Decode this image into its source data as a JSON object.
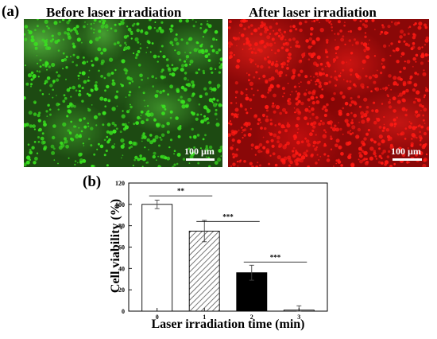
{
  "figure": {
    "panel_a_label": "(a)",
    "panel_b_label": "(b)"
  },
  "micrographs": [
    {
      "title": "Before laser irradiation",
      "scale_label": "100 µm",
      "color": "#39e21f"
    },
    {
      "title": "After laser irradiation",
      "scale_label": "100 µm",
      "color": "#ff1a14"
    }
  ],
  "chart_data": {
    "type": "bar",
    "categories": [
      "0",
      "1",
      "2",
      "3"
    ],
    "values": [
      100,
      75,
      36,
      1
    ],
    "errors": [
      4,
      10,
      7,
      4
    ],
    "bar_styles": [
      "white",
      "hatched",
      "black",
      "white"
    ],
    "xlabel": "Laser irradiation time (min)",
    "ylabel": "Cell viability (%)",
    "ylim": [
      0,
      120
    ],
    "yticks": [
      "0",
      "20",
      "40",
      "60",
      "80",
      "100",
      "120"
    ],
    "grid": false,
    "significance": [
      {
        "from": 0,
        "to": 1,
        "y": 108,
        "label": "**"
      },
      {
        "from": 1,
        "to": 2,
        "y": 84,
        "label": "***"
      },
      {
        "from": 2,
        "to": 3,
        "y": 46,
        "label": "***"
      }
    ]
  }
}
